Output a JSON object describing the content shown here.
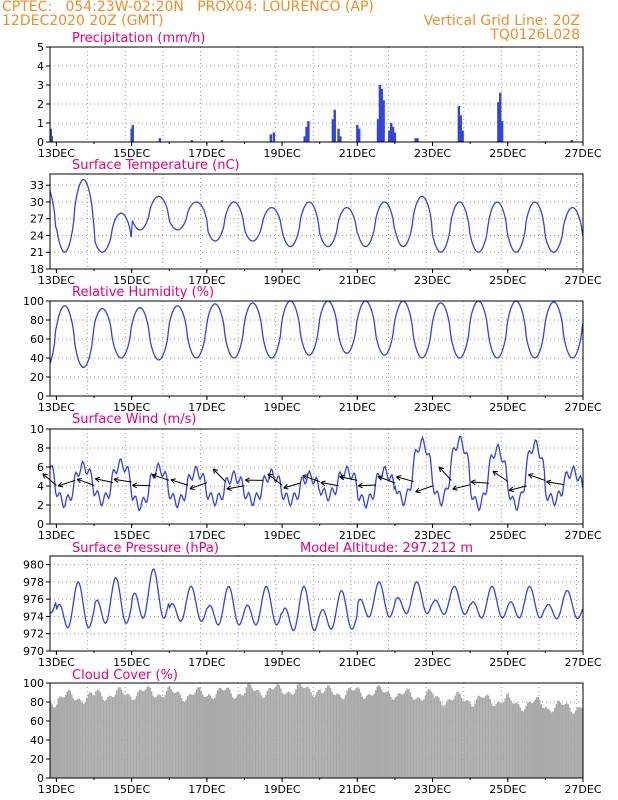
{
  "header": {
    "line1_left": "CPTEC:   054:23W-02:20N   PROX04: LOURENCO (AP)",
    "line2_left": "12DEC2020 20Z (GMT)",
    "line2_right": "Vertical Grid Line: 20Z",
    "line3_right": "TQ0126L028"
  },
  "colors": {
    "header": "#f08c28",
    "title": "#e6007e",
    "series": "#3344dd",
    "cloud": "#a9a9a9",
    "grid": "#999999"
  },
  "x_axis": {
    "day_ticks": [
      13,
      15,
      17,
      19,
      21,
      23,
      25,
      27
    ],
    "tick_labels": [
      "13DEC",
      "15DEC",
      "17DEC",
      "19DEC",
      "21DEC",
      "23DEC",
      "25DEC",
      "27DEC"
    ],
    "start_day": 12.83,
    "end_day": 27.0,
    "vertical_grid": "20Z"
  },
  "chart_data": [
    {
      "type": "bar",
      "title": "Precipitation (mm/h)",
      "ylim": [
        0,
        5
      ],
      "yticks": [
        0,
        1,
        2,
        3,
        4,
        5
      ],
      "events": [
        [
          12.85,
          0.7
        ],
        [
          12.88,
          0.3
        ],
        [
          15.0,
          0.7
        ],
        [
          15.03,
          0.9
        ],
        [
          15.75,
          0.2
        ],
        [
          16.6,
          0.1
        ],
        [
          17.4,
          0.1
        ],
        [
          18.7,
          0.4
        ],
        [
          18.78,
          0.5
        ],
        [
          19.6,
          0.3
        ],
        [
          19.65,
          0.8
        ],
        [
          19.7,
          1.1
        ],
        [
          20.35,
          1.2
        ],
        [
          20.4,
          1.7
        ],
        [
          20.5,
          0.7
        ],
        [
          20.55,
          0.3
        ],
        [
          21.0,
          0.9
        ],
        [
          21.05,
          0.7
        ],
        [
          21.55,
          1.2
        ],
        [
          21.6,
          3.0
        ],
        [
          21.65,
          2.8
        ],
        [
          21.7,
          2.2
        ],
        [
          21.85,
          0.6
        ],
        [
          21.9,
          1.0
        ],
        [
          21.95,
          0.8
        ],
        [
          22.0,
          0.5
        ],
        [
          22.55,
          0.2
        ],
        [
          22.6,
          0.2
        ],
        [
          23.7,
          1.9
        ],
        [
          23.75,
          1.4
        ],
        [
          23.8,
          0.6
        ],
        [
          24.75,
          2.1
        ],
        [
          24.8,
          2.6
        ],
        [
          24.85,
          1.1
        ],
        [
          26.7,
          0.1
        ]
      ]
    },
    {
      "type": "line",
      "title": "Surface Temperature (nC)",
      "ylim": [
        18,
        35
      ],
      "yticks": [
        18,
        21,
        24,
        27,
        30,
        33
      ],
      "daily_max": [
        33,
        34,
        28,
        31,
        30,
        30,
        29,
        30,
        29,
        30,
        31,
        30,
        30,
        30,
        29
      ],
      "daily_min": [
        20,
        21,
        21,
        25,
        25,
        23,
        23,
        22,
        22,
        22,
        22,
        21,
        21,
        21,
        21
      ]
    },
    {
      "type": "line",
      "title": "Relative Humidity (%)",
      "ylim": [
        0,
        100
      ],
      "yticks": [
        0,
        20,
        40,
        60,
        80,
        100
      ],
      "daily_max": [
        100,
        95,
        92,
        93,
        95,
        97,
        98,
        100,
        100,
        100,
        100,
        98,
        100,
        100,
        99
      ],
      "daily_min": [
        28,
        30,
        40,
        38,
        40,
        40,
        40,
        43,
        45,
        43,
        40,
        40,
        40,
        40,
        40
      ]
    },
    {
      "type": "line",
      "title": "Surface Wind (m/s)",
      "ylim": [
        0,
        10
      ],
      "yticks": [
        0,
        2,
        4,
        6,
        8,
        10
      ],
      "daily_max": [
        6.5,
        6.0,
        6.3,
        5.8,
        5.5,
        5.0,
        5.2,
        5.0,
        5.5,
        5.5,
        8.5,
        8.7,
        7.8,
        8.3,
        5.5
      ],
      "daily_min": [
        1.8,
        2.3,
        2.5,
        2.0,
        2.3,
        2.5,
        2.5,
        2.5,
        3.0,
        2.3,
        2.5,
        2.5,
        2.0,
        2.0,
        2.5
      ]
    },
    {
      "type": "line",
      "title": "Surface Pressure (hPa)",
      "annotation": "Model Altitude: 297.212 m",
      "ylim": [
        970,
        981
      ],
      "yticks": [
        970,
        972,
        974,
        976,
        978,
        980
      ],
      "daily_max": [
        978.5,
        978.0,
        978.5,
        979.5,
        977.5,
        977.5,
        977.5,
        977.5,
        977.0,
        978.0,
        978.0,
        977.5,
        977.5,
        977.5,
        977.0
      ],
      "daily_min": [
        973.5,
        971.5,
        972.0,
        972.5,
        972.5,
        972.0,
        972.0,
        971.2,
        971.5,
        973.0,
        973.5,
        973.5,
        973.0,
        973.0,
        973.0
      ]
    },
    {
      "type": "bar",
      "title": "Cloud Cover (%)",
      "ylim": [
        0,
        100
      ],
      "yticks": [
        0,
        20,
        40,
        60,
        80,
        100
      ],
      "typical_percent": [
        82,
        85,
        88,
        90,
        88,
        90,
        92,
        93,
        90,
        90,
        87,
        83,
        82,
        78,
        75
      ]
    }
  ]
}
